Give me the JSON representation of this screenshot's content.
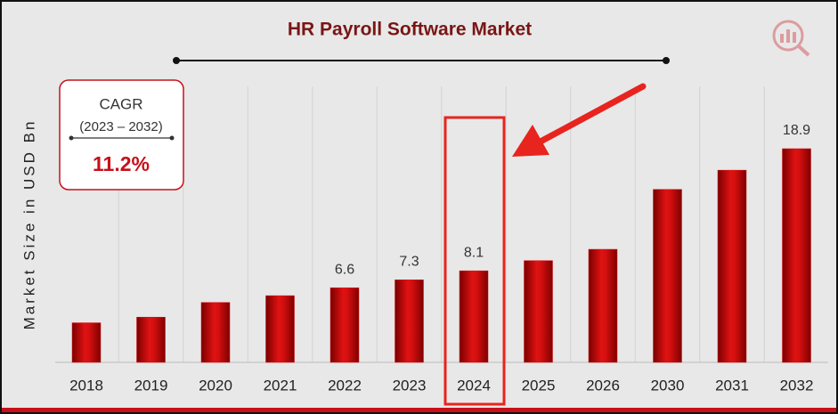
{
  "chart_data": {
    "type": "bar",
    "title": "HR Payroll  Software Market",
    "y_label": "Market Size in USD Bn",
    "categories": [
      "2018",
      "2019",
      "2020",
      "2021",
      "2022",
      "2023",
      "2024",
      "2025",
      "2026",
      "2030",
      "2031",
      "2032"
    ],
    "values": [
      3.5,
      4.0,
      5.3,
      5.9,
      6.6,
      7.3,
      8.1,
      9.0,
      10.0,
      15.3,
      17.0,
      18.9
    ],
    "value_labels": [
      null,
      null,
      null,
      null,
      "6.6",
      "7.3",
      "8.1",
      null,
      null,
      null,
      null,
      "18.9"
    ],
    "color": "#d40f0f",
    "annotations": {
      "cagr_title": "CAGR",
      "cagr_period": "(2023 – 2032)",
      "cagr_value": "11.2%"
    }
  }
}
